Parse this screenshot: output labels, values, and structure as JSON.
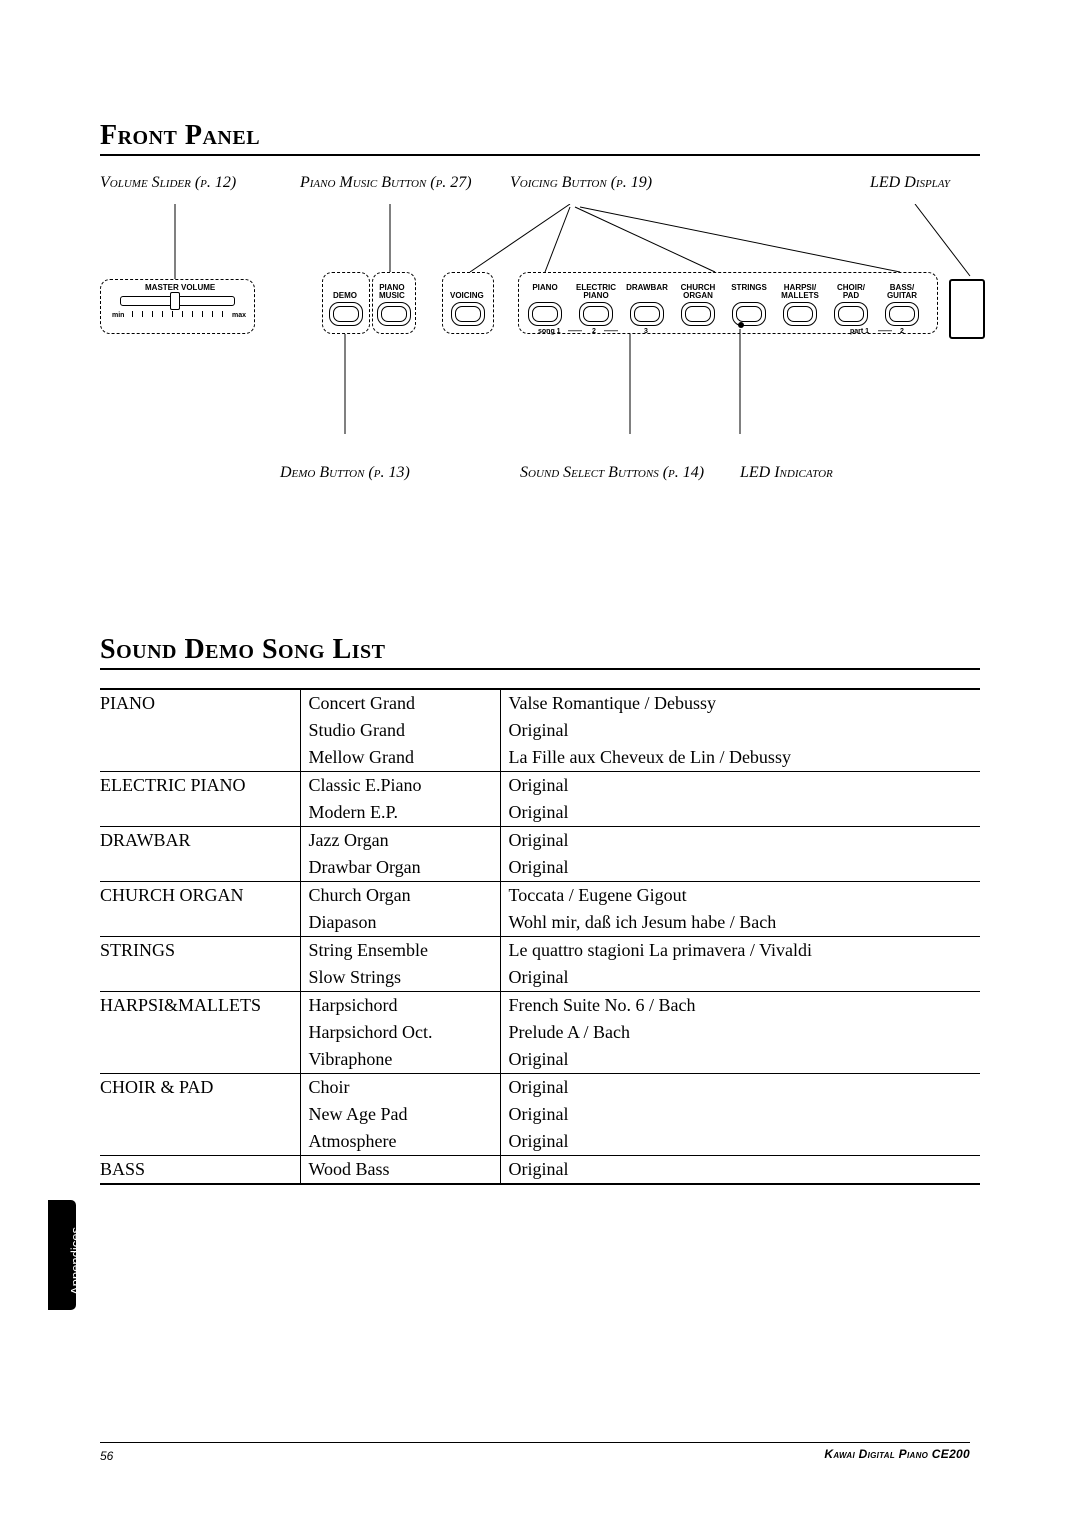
{
  "section1_title": "Front Panel",
  "section2_title": "Sound Demo Song List",
  "labels": {
    "volume_slider": "Volume Slider (p. 12)",
    "piano_music_button": "Piano Music Button (p. 27)",
    "voicing_button": "Voicing Button (p. 19)",
    "led_display": "LED Display",
    "demo_button": "Demo Button (p. 13)",
    "sound_select_buttons": "Sound Select Buttons (p. 14)",
    "led_indicator": "LED Indicator"
  },
  "panel": {
    "master_volume": "MASTER VOLUME",
    "min": "min",
    "max": "max",
    "demo": "DEMO",
    "piano_music": "PIANO\nMUSIC",
    "voicing": "VOICING",
    "sounds": [
      "PIANO",
      "ELECTRIC\nPIANO",
      "DRAWBAR",
      "CHURCH\nORGAN",
      "STRINGS",
      "HARPSI/\nMALLETS",
      "CHOIR/\nPAD",
      "BASS/\nGUITAR"
    ],
    "song1": "song 1",
    "n2": "2",
    "n3": "3",
    "part1": "part 1",
    "p2": "2"
  },
  "colors": {
    "accent_label": "#c00000",
    "text": "#000000"
  },
  "table": [
    {
      "cat": "PIANO",
      "rows": [
        [
          "Concert Grand",
          "Valse Romantique / Debussy"
        ],
        [
          "Studio Grand",
          "Original"
        ],
        [
          "Mellow Grand",
          "La Fille aux Cheveux de Lin / Debussy"
        ]
      ]
    },
    {
      "cat": "ELECTRIC PIANO",
      "rows": [
        [
          "Classic E.Piano",
          "Original"
        ],
        [
          "Modern E.P.",
          "Original"
        ]
      ]
    },
    {
      "cat": "DRAWBAR",
      "rows": [
        [
          "Jazz Organ",
          "Original"
        ],
        [
          "Drawbar Organ",
          "Original"
        ]
      ]
    },
    {
      "cat": "CHURCH ORGAN",
      "rows": [
        [
          "Church Organ",
          "Toccata / Eugene Gigout"
        ],
        [
          "Diapason",
          "Wohl mir, daß ich Jesum habe / Bach"
        ]
      ]
    },
    {
      "cat": "STRINGS",
      "rows": [
        [
          "String Ensemble",
          "Le quattro stagioni La primavera / Vivaldi"
        ],
        [
          "Slow Strings",
          "Original"
        ]
      ]
    },
    {
      "cat": "HARPSI&MALLETS",
      "rows": [
        [
          "Harpsichord",
          "French Suite No. 6 / Bach"
        ],
        [
          "Harpsichord Oct.",
          "Prelude A  / Bach"
        ],
        [
          "Vibraphone",
          "Original"
        ]
      ]
    },
    {
      "cat": "CHOIR & PAD",
      "rows": [
        [
          "Choir",
          "Original"
        ],
        [
          "New Age Pad",
          "Original"
        ],
        [
          "Atmosphere",
          "Original"
        ]
      ]
    },
    {
      "cat": "BASS",
      "rows": [
        [
          "Wood Bass",
          "Original"
        ]
      ]
    }
  ],
  "side_tab": "Appendices",
  "page_number": "56",
  "footer_title": "Kawai Digital Piano CE200"
}
